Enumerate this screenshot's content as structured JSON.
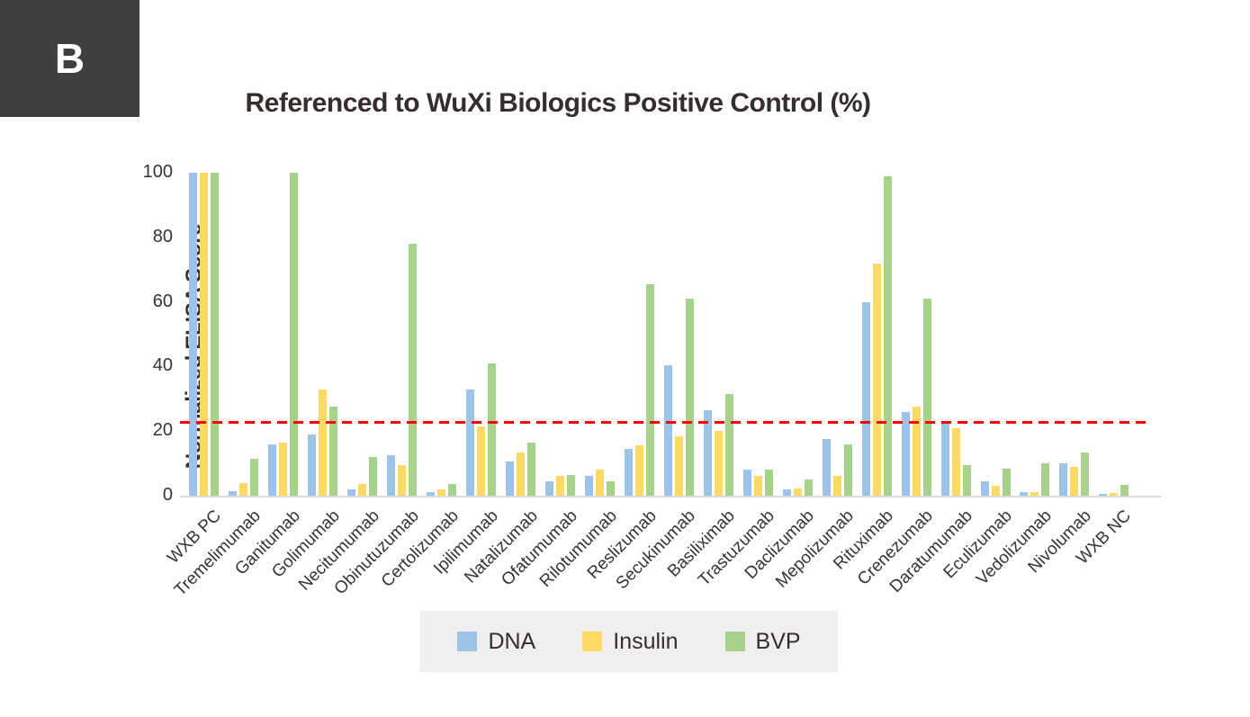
{
  "panel": {
    "label": "B"
  },
  "chart_data": {
    "type": "bar",
    "title": "Referenced to WuXi Biologics Positive Control (%)",
    "xlabel": "",
    "ylabel": "Normalized ELISA Score",
    "ylim": [
      0,
      100
    ],
    "yticks": [
      0,
      20,
      40,
      60,
      80,
      100
    ],
    "grid": false,
    "legend_position": "bottom",
    "threshold_line": {
      "value": 22.6,
      "color": "#fe0000",
      "style": "dashed"
    },
    "categories": [
      "WXB PC",
      "Tremelimumab",
      "Ganitumab",
      "Golimumab",
      "Necitumumab",
      "Obinutuzumab",
      "Certolizumab",
      "Ipilimumab",
      "Natalizumab",
      "Ofatumumab",
      "Rilotumumab",
      "Reslizumab",
      "Secukinumab",
      "Basiliximab",
      "Trastuzumab",
      "Daclizumab",
      "Mepolizumab",
      "Rituximab",
      "Crenezumab",
      "Daratumumab",
      "Eculizumab",
      "Vedolizumab",
      "Nivolumab",
      "WXB NC"
    ],
    "series": [
      {
        "name": "DNA",
        "color": "#9dc3e6",
        "values": [
          100,
          1.5,
          16,
          19,
          2,
          12.5,
          1,
          33,
          10.5,
          4.5,
          6,
          14.5,
          40.5,
          26.5,
          8,
          2,
          17.5,
          60,
          26,
          22.5,
          4.5,
          1,
          10,
          0.6
        ]
      },
      {
        "name": "Insulin",
        "color": "#ffd966",
        "values": [
          100,
          4,
          16.5,
          33,
          3.5,
          9.5,
          2,
          21.5,
          13.5,
          6,
          8,
          15.5,
          18.5,
          20,
          6,
          2.2,
          6,
          72,
          27.5,
          21,
          3,
          1.2,
          9,
          0.8
        ]
      },
      {
        "name": "BVP",
        "color": "#a9d18e",
        "values": [
          100,
          11.5,
          100,
          27.5,
          12,
          78,
          3.5,
          41,
          16.5,
          6.5,
          4.5,
          65.5,
          61,
          31.5,
          8,
          5,
          16,
          99,
          61,
          9.5,
          8.5,
          10,
          13.5,
          3.3
        ]
      }
    ]
  }
}
